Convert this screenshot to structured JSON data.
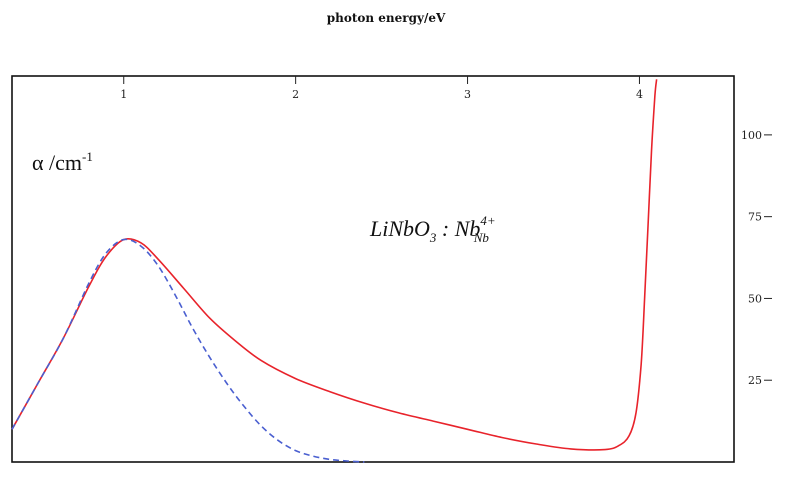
{
  "chart_data": {
    "type": "line",
    "xlabel": "photon energy/eV",
    "ylabel": "α /cm",
    "ylabel_superscript": "-1",
    "annotation": {
      "base": "LiNbO",
      "base_sub": "3",
      "mid": " : Nb",
      "sup": "4+",
      "sub": "Nb"
    },
    "x_axis_position": "top",
    "y_axis_position": "right",
    "xlim": [
      0.35,
      4.55
    ],
    "ylim": [
      0,
      118
    ],
    "x_ticks": [
      1,
      2,
      3,
      4
    ],
    "x_tick_labels": [
      "1",
      "2",
      "3",
      "4"
    ],
    "y_ticks": [
      25,
      50,
      75,
      100
    ],
    "y_tick_labels": [
      "25",
      "50",
      "75",
      "100"
    ],
    "grid": false,
    "series": [
      {
        "style": "solid",
        "color": "#e8232b",
        "x": [
          0.35,
          0.5,
          0.65,
          0.8,
          0.9,
          1.0,
          1.1,
          1.2,
          1.35,
          1.5,
          1.65,
          1.8,
          2.0,
          2.2,
          2.4,
          2.6,
          2.8,
          3.0,
          3.2,
          3.4,
          3.6,
          3.8,
          3.88,
          3.94,
          3.98,
          4.01,
          4.03,
          4.05,
          4.07,
          4.09,
          4.1
        ],
        "y": [
          10,
          24,
          38,
          54,
          63,
          68,
          67,
          62,
          53,
          44,
          37,
          31,
          25.5,
          21.5,
          18,
          15,
          12.5,
          10,
          7.5,
          5.5,
          4,
          3.8,
          5,
          8,
          15,
          30,
          50,
          72,
          95,
          112,
          117
        ]
      },
      {
        "style": "dashed",
        "color": "#4a5fd0",
        "x": [
          0.35,
          0.5,
          0.65,
          0.8,
          0.9,
          1.0,
          1.1,
          1.2,
          1.3,
          1.4,
          1.5,
          1.6,
          1.7,
          1.8,
          1.9,
          2.0,
          2.1,
          2.2,
          2.3,
          2.4
        ],
        "y": [
          10,
          24,
          38,
          55,
          64,
          68,
          66,
          60,
          51,
          41,
          32,
          24,
          17,
          11,
          6.5,
          3.5,
          1.8,
          0.8,
          0.3,
          0
        ]
      }
    ]
  }
}
